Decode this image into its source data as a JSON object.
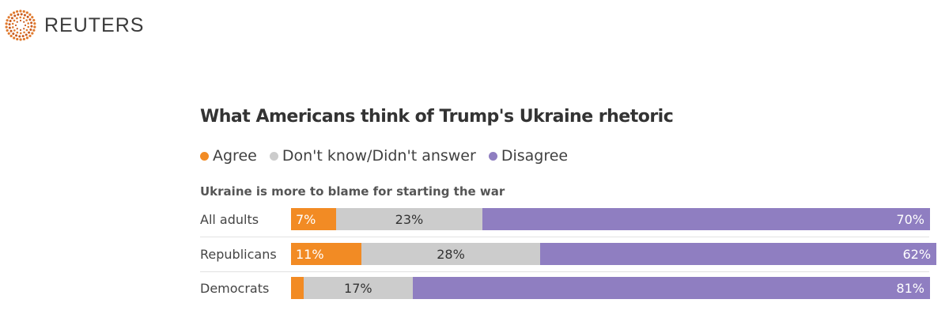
{
  "brand": {
    "name": "REUTERS",
    "logo_icon": "reuters-dot-logo-icon"
  },
  "chart_data": {
    "type": "bar",
    "orientation": "horizontal-stacked-100",
    "title": "What Americans think of Trump's Ukraine rhetoric",
    "subtitle": "Ukraine is more to blame for starting the war",
    "legend_position": "top-left",
    "series": [
      {
        "name": "Agree",
        "color": "#f28b24",
        "values": [
          7,
          11,
          2
        ],
        "labels": [
          "7%",
          "11%",
          ""
        ]
      },
      {
        "name": "Don't know/Didn't answer",
        "color": "#cccccc",
        "values": [
          23,
          28,
          17
        ],
        "labels": [
          "23%",
          "28%",
          "17%"
        ]
      },
      {
        "name": "Disagree",
        "color": "#8f7ec1",
        "values": [
          70,
          62,
          81
        ],
        "labels": [
          "70%",
          "62%",
          "81%"
        ]
      }
    ],
    "categories": [
      "All adults",
      "Republicans",
      "Democrats"
    ],
    "xlim": [
      0,
      100
    ]
  }
}
